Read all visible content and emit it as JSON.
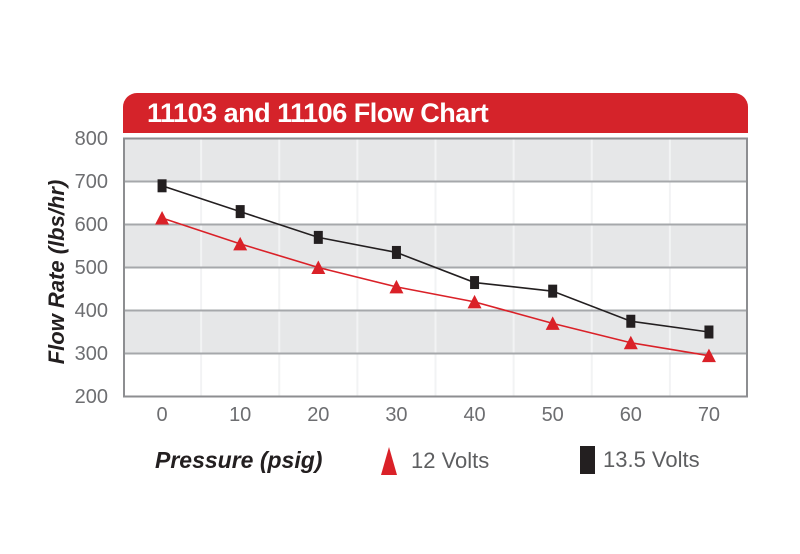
{
  "chart": {
    "title": "11103 and 11106 Flow Chart"
  },
  "colors": {
    "banner_red": "#d5232a",
    "series_red": "#da2128",
    "series_black": "#231f20",
    "band_gray": "#e6e7e8",
    "gridline_gray": "#a6a8ab",
    "border_gray": "#8d8e91",
    "tick_text": "#6d6e71",
    "legend_text": "#5d5e60",
    "axis_title_text": "#231f20",
    "title_text": "#ffffff"
  },
  "chart_data": {
    "type": "line",
    "title": "11103 and 11106 Flow Chart",
    "xlabel": "Pressure (psig)",
    "ylabel": "Flow Rate (lbs/hr)",
    "x": [
      0,
      10,
      20,
      30,
      40,
      50,
      60,
      70
    ],
    "x_tick_labels": [
      "0",
      "10",
      "20",
      "30",
      "40",
      "50",
      "60",
      "70"
    ],
    "y_ticks": [
      800,
      700,
      600,
      500,
      400,
      300,
      200
    ],
    "ylim": [
      200,
      800
    ],
    "grid": "horizontal gridlines with alternating gray bands, faint vertical category lines",
    "legend_position": "bottom",
    "series": [
      {
        "name": "12 Volts",
        "marker": "triangle",
        "color": "#da2128",
        "values": [
          615,
          555,
          500,
          455,
          420,
          370,
          325,
          295
        ]
      },
      {
        "name": "13.5 Volts",
        "marker": "square",
        "color": "#231f20",
        "values": [
          690,
          630,
          570,
          535,
          465,
          445,
          375,
          350
        ]
      }
    ]
  }
}
